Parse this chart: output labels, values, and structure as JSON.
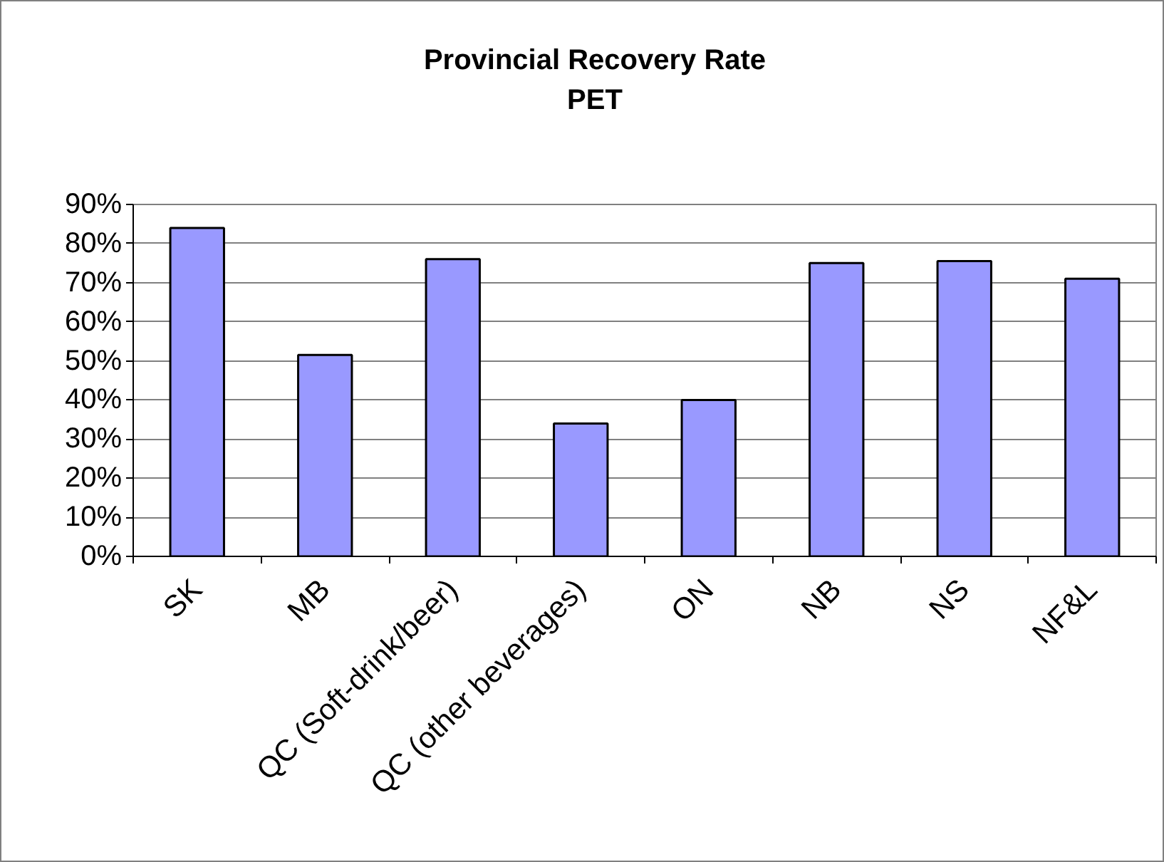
{
  "chart_data": {
    "type": "bar",
    "title": "Provincial Recovery Rate",
    "subtitle": "PET",
    "categories": [
      "SK",
      "MB",
      "QC (Soft-drink/beer)",
      "QC (other beverages)",
      "ON",
      "NB",
      "NS",
      "NF&L"
    ],
    "values": [
      84,
      51.5,
      76,
      34,
      40,
      75,
      75.5,
      71
    ],
    "color": "#9999ff",
    "ylim": [
      0,
      90
    ],
    "yticks": [
      {
        "value": 0,
        "label": "0%"
      },
      {
        "value": 10,
        "label": "10%"
      },
      {
        "value": 20,
        "label": "20%"
      },
      {
        "value": 30,
        "label": "30%"
      },
      {
        "value": 40,
        "label": "40%"
      },
      {
        "value": 50,
        "label": "50%"
      },
      {
        "value": 60,
        "label": "60%"
      },
      {
        "value": 70,
        "label": "70%"
      },
      {
        "value": 80,
        "label": "80%"
      },
      {
        "value": 90,
        "label": "90%"
      }
    ],
    "grid": "y"
  }
}
